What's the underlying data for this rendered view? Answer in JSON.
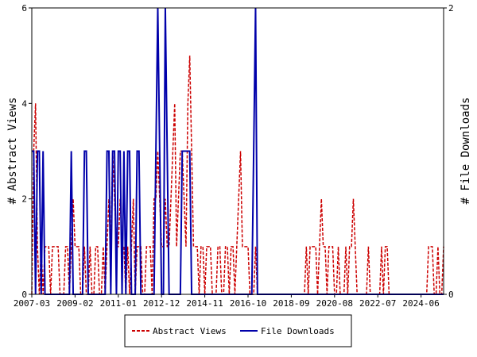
{
  "chart_data": {
    "type": "line",
    "ylabel": "# Abstract Views",
    "y2label": "# File Downloads",
    "ylim": [
      0,
      6
    ],
    "yticks": [
      0,
      2,
      4,
      6
    ],
    "y2lim": [
      0,
      2
    ],
    "y2ticks": [
      0,
      2
    ],
    "legend": "bottom",
    "categories": [
      "2007-03",
      null,
      null,
      null,
      null,
      null,
      null,
      null,
      null,
      null,
      null,
      null,
      null,
      null,
      null,
      null,
      null,
      null,
      null,
      null,
      null,
      null,
      null,
      "2009-02",
      null,
      null,
      null,
      null,
      null,
      null,
      null,
      null,
      null,
      null,
      null,
      null,
      null,
      null,
      null,
      null,
      null,
      null,
      null,
      null,
      null,
      null,
      "2011-01",
      null,
      null,
      null,
      null,
      null,
      null,
      null,
      null,
      null,
      null,
      null,
      null,
      null,
      null,
      null,
      null,
      null,
      null,
      null,
      null,
      null,
      null,
      "2012-12",
      null,
      null,
      null,
      null,
      null,
      null,
      null,
      null,
      null,
      null,
      null,
      null,
      null,
      null,
      null,
      null,
      null,
      null,
      null,
      null,
      null,
      null,
      "2014-11",
      null,
      null,
      null,
      null,
      null,
      null,
      null,
      null,
      null,
      null,
      null,
      null,
      null,
      null,
      null,
      null,
      null,
      null,
      null,
      null,
      null,
      null,
      "2016-10",
      null,
      null,
      null,
      null,
      null,
      null,
      null,
      null,
      null,
      null,
      null,
      null,
      null,
      null,
      null,
      null,
      null,
      null,
      null,
      null,
      null,
      null,
      "2018-09",
      null,
      null,
      null,
      null,
      null,
      null,
      null,
      null,
      null,
      null,
      null,
      null,
      null,
      null,
      null,
      null,
      null,
      null,
      null,
      null,
      null,
      null,
      "2020-08",
      null,
      null,
      null,
      null,
      null,
      null,
      null,
      null,
      null,
      null,
      null,
      null,
      null,
      null,
      null,
      null,
      null,
      null,
      null,
      null,
      null,
      null,
      "2022-07",
      null,
      null,
      null,
      null,
      null,
      null,
      null,
      null,
      null,
      null,
      null,
      null,
      null,
      null,
      null,
      null,
      null,
      null,
      null,
      null,
      null,
      null,
      "2024-06",
      null,
      null,
      null,
      null,
      null,
      null,
      null,
      null,
      null,
      null,
      null,
      null
    ],
    "series": [
      {
        "name": "Abstract Views",
        "color": "#cc0000",
        "dash": true,
        "values": [
          0,
          3,
          4,
          1,
          0,
          1,
          0,
          1,
          1,
          1,
          0,
          1,
          1,
          1,
          1,
          0,
          0,
          0,
          1,
          1,
          0,
          1,
          2,
          1,
          1,
          1,
          0,
          0,
          1,
          0,
          0,
          1,
          0,
          0,
          1,
          1,
          0,
          0,
          1,
          0,
          1,
          2,
          1,
          3,
          2,
          1,
          1,
          2,
          1,
          1,
          0,
          1,
          0,
          1,
          2,
          0,
          1,
          1,
          1,
          0,
          0,
          1,
          1,
          1,
          0,
          2,
          2,
          3,
          2,
          1,
          1,
          2,
          1,
          1,
          2,
          3,
          4,
          1,
          2,
          3,
          3,
          2,
          1,
          4,
          5,
          3,
          1,
          1,
          1,
          0,
          1,
          1,
          0,
          1,
          1,
          1,
          0,
          0,
          0,
          1,
          1,
          0,
          0,
          1,
          1,
          0,
          1,
          1,
          0,
          1,
          2,
          3,
          1,
          1,
          1,
          1,
          0,
          0,
          0,
          1,
          0,
          0,
          0,
          0,
          0,
          0,
          0,
          0,
          0,
          0,
          0,
          0,
          0,
          0,
          0,
          0,
          0,
          0,
          0,
          0,
          0,
          0,
          0,
          0,
          0,
          0,
          1,
          0,
          1,
          1,
          1,
          1,
          0,
          1,
          2,
          1,
          1,
          0,
          1,
          1,
          1,
          0,
          0,
          1,
          0,
          0,
          0,
          1,
          0,
          1,
          1,
          2,
          1,
          0,
          0,
          0,
          0,
          0,
          0,
          1,
          0,
          0,
          0,
          0,
          0,
          0,
          1,
          0,
          1,
          1,
          0,
          0,
          0,
          0,
          0,
          0,
          0,
          0,
          0,
          0,
          0,
          0,
          0,
          0,
          0,
          0,
          0,
          0,
          0,
          0,
          0,
          1,
          1,
          1,
          0,
          0,
          1,
          0,
          0,
          1
        ]
      },
      {
        "name": "File Downloads",
        "color": "#0000aa",
        "axis": "y2",
        "values": [
          1,
          1,
          0,
          1,
          1,
          0,
          1,
          0,
          0,
          0,
          0,
          0,
          0,
          0,
          0,
          0,
          0,
          0,
          0,
          0,
          0,
          1,
          0,
          0,
          0,
          0,
          0,
          0,
          1,
          1,
          0,
          0,
          0,
          0,
          0,
          0,
          0,
          0,
          0,
          0,
          1,
          1,
          0,
          1,
          1,
          0,
          1,
          1,
          0,
          1,
          0,
          1,
          1,
          0,
          0,
          0,
          1,
          1,
          0,
          0,
          0,
          0,
          0,
          0,
          0,
          0,
          1,
          2,
          1,
          0,
          0,
          2,
          1,
          0,
          0,
          0,
          0,
          0,
          0,
          0,
          1,
          1,
          1,
          1,
          1,
          0,
          0,
          0,
          0,
          0,
          0,
          0,
          0,
          0,
          0,
          0,
          0,
          0,
          0,
          0,
          0,
          0,
          0,
          0,
          0,
          0,
          0,
          0,
          0,
          0,
          0,
          0,
          0,
          0,
          0,
          0,
          0,
          0,
          1,
          2,
          0,
          0,
          0,
          0,
          0,
          0,
          0,
          0,
          0,
          0,
          0,
          0,
          0,
          0,
          0,
          0,
          0,
          0,
          0,
          0,
          0,
          0,
          0,
          0,
          0,
          0,
          0,
          0,
          0,
          0,
          0,
          0,
          0,
          0,
          0,
          0,
          0,
          0,
          0,
          0,
          0,
          0,
          0,
          0,
          0,
          0,
          0,
          0,
          0,
          0,
          0,
          0,
          0,
          0,
          0,
          0,
          0,
          0,
          0,
          0,
          0,
          0,
          0,
          0,
          0,
          0,
          0,
          0,
          0,
          0,
          0,
          0,
          0,
          0,
          0,
          0,
          0,
          0,
          0,
          0,
          0,
          0,
          0,
          0,
          0,
          0,
          0,
          0,
          0,
          0,
          0,
          0,
          0,
          0,
          0,
          0,
          0,
          0,
          0,
          0
        ]
      }
    ]
  }
}
